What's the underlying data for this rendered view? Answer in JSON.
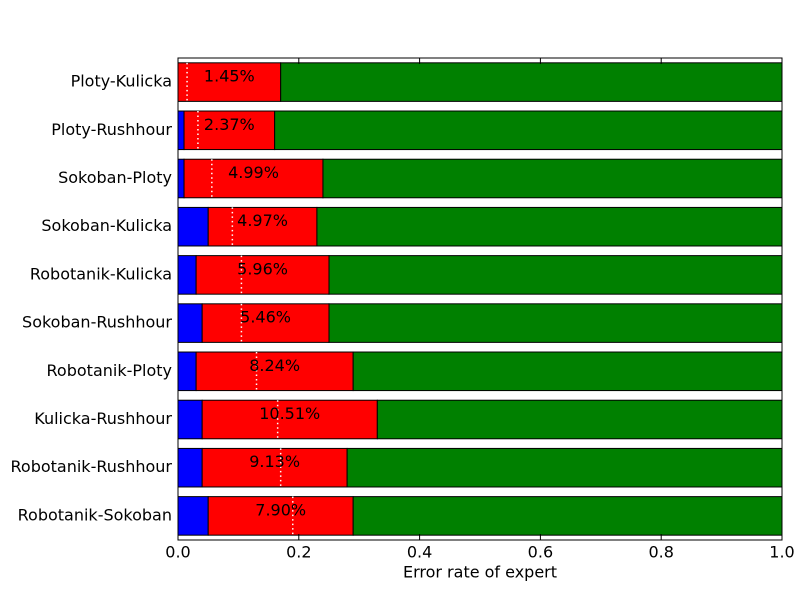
{
  "chart_data": {
    "type": "stacked_barh",
    "xlabel": "Error rate of expert",
    "categories": [
      "Ploty-Kulicka",
      "Ploty-Rushhour",
      "Sokoban-Ploty",
      "Sokoban-Kulicka",
      "Robotanik-Kulicka",
      "Sokoban-Rushhour",
      "Robotanik-Ploty",
      "Kulicka-Rushhour",
      "Robotanik-Rushhour",
      "Robotanik-Sokoban"
    ],
    "series": [
      {
        "color": "#0000ff",
        "values": [
          0.0,
          0.01,
          0.01,
          0.05,
          0.03,
          0.04,
          0.03,
          0.04,
          0.04,
          0.05
        ]
      },
      {
        "color": "#ff0000",
        "values": [
          0.17,
          0.15,
          0.23,
          0.18,
          0.22,
          0.21,
          0.26,
          0.29,
          0.24,
          0.24
        ]
      },
      {
        "color": "#008000",
        "values": [
          0.83,
          0.84,
          0.76,
          0.77,
          0.75,
          0.75,
          0.71,
          0.67,
          0.72,
          0.71
        ]
      }
    ],
    "markers": [
      0.015,
      0.033,
      0.056,
      0.09,
      0.105,
      0.105,
      0.13,
      0.165,
      0.17,
      0.19
    ],
    "marker_color": "#ffffff",
    "annotations": [
      "1.45%",
      "2.37%",
      "4.99%",
      "4.97%",
      "5.96%",
      "5.46%",
      "8.24%",
      "10.51%",
      "9.13%",
      "7.90%"
    ],
    "xlim": [
      0,
      1.0
    ],
    "xticks": [
      {
        "value": 0,
        "label": "0.0"
      },
      {
        "value": 0.2,
        "label": "0.2"
      },
      {
        "value": 0.4,
        "label": "0.4"
      },
      {
        "value": 0.6,
        "label": "0.6"
      },
      {
        "value": 0.8,
        "label": "0.8"
      },
      {
        "value": 1.0,
        "label": "1.0"
      }
    ]
  }
}
